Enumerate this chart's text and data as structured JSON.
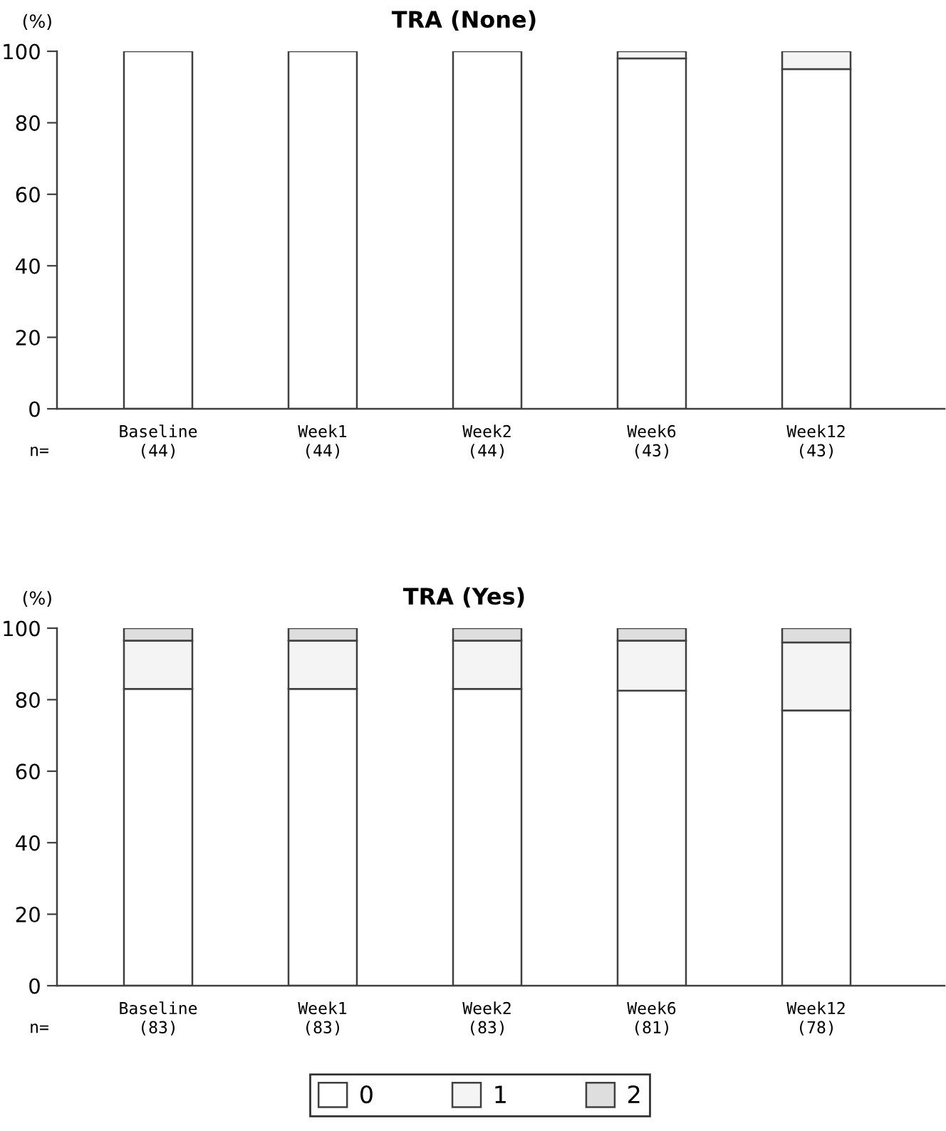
{
  "chart_data": [
    {
      "type": "bar",
      "title": "TRA (None)",
      "ylabel": "(%)",
      "categories": [
        "Baseline\n(44)",
        "Week1\n(44)",
        "Week2\n(44)",
        "Week6\n(43)",
        "Week12\n(43)"
      ],
      "stacked": true,
      "series": [
        {
          "name": "0",
          "color": "#ffffff",
          "values": [
            100,
            100,
            100,
            98,
            95
          ]
        },
        {
          "name": "1",
          "color": "#f4f4f4",
          "values": [
            0,
            0,
            0,
            2,
            5
          ]
        },
        {
          "name": "2",
          "color": "#dedede",
          "values": [
            0,
            0,
            0,
            0,
            0
          ]
        }
      ],
      "ylim": [
        0,
        100
      ],
      "yticks": [
        0,
        20,
        40,
        60,
        80,
        100
      ],
      "annotations": [
        "n="
      ],
      "legend": "bottom"
    },
    {
      "type": "bar",
      "title": "TRA (Yes)",
      "ylabel": "(%)",
      "categories": [
        "Baseline\n(83)",
        "Week1\n(83)",
        "Week2\n(83)",
        "Week6\n(81)",
        "Week12\n(78)"
      ],
      "stacked": true,
      "series": [
        {
          "color": "#ffffff",
          "values": [
            83,
            83,
            83,
            82.5,
            77
          ]
        },
        {
          "color": "#f4f4f4",
          "values": [
            13.5,
            13.5,
            13.5,
            14,
            19
          ]
        },
        {
          "color": "#dedede",
          "values": [
            3.5,
            3.5,
            3.5,
            3.5,
            4
          ]
        }
      ],
      "ylim": [
        0,
        100
      ],
      "yticks": [
        0,
        20,
        40,
        60,
        80,
        100
      ],
      "annotations": [
        "n="
      ]
    }
  ]
}
